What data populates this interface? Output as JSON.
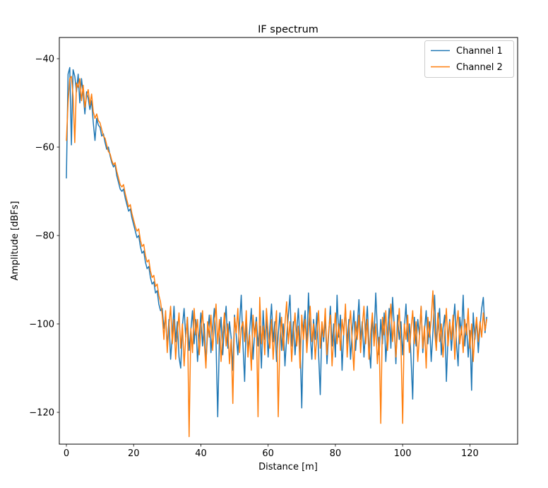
{
  "figure": {
    "background": "#ffffff"
  },
  "chart_data": {
    "type": "line",
    "title": "IF spectrum",
    "xlabel": "Distance [m]",
    "ylabel": "Amplitude [dBFs]",
    "xlim": [
      -2.1,
      134.2
    ],
    "ylim": [
      -127.2,
      -35.2
    ],
    "xticks": [
      0,
      20,
      40,
      60,
      80,
      100,
      120
    ],
    "xtick_labels": [
      "0",
      "20",
      "40",
      "60",
      "80",
      "100",
      "120"
    ],
    "yticks": [
      -120,
      -100,
      -80,
      -60,
      -40
    ],
    "ytick_labels": [
      "−120",
      "−100",
      "−80",
      "−60",
      "−40"
    ],
    "grid": false,
    "legend": {
      "position": "upper right",
      "entries": [
        "Channel 1",
        "Channel 2"
      ]
    },
    "x_start": 0,
    "x_step": 0.5,
    "series": [
      {
        "name": "Channel 1",
        "color": "#1f77b4",
        "values": [
          -67,
          -43.5,
          -42,
          -59.5,
          -42.5,
          -44,
          -47.5,
          -43.5,
          -50,
          -44.5,
          -48,
          -52.5,
          -47.5,
          -49,
          -51.5,
          -49.5,
          -54.5,
          -58.5,
          -53.5,
          -55,
          -55.5,
          -57.5,
          -57,
          -59,
          -60.5,
          -60,
          -62,
          -63.5,
          -64.5,
          -64,
          -66.5,
          -68,
          -69.5,
          -70,
          -69.5,
          -71.5,
          -73,
          -74.5,
          -74,
          -76,
          -77.5,
          -79,
          -80.5,
          -80,
          -82.5,
          -84,
          -83.5,
          -86,
          -87.5,
          -87,
          -89.5,
          -91,
          -90.5,
          -93,
          -92.5,
          -95.5,
          -97,
          -96.5,
          -101,
          -98,
          -105.5,
          -99,
          -108,
          -102.5,
          -96,
          -104,
          -99.5,
          -107.5,
          -110,
          -100.5,
          -96.5,
          -103,
          -98.5,
          -106,
          -101.5,
          -97,
          -104.5,
          -99,
          -108.5,
          -103,
          -97.5,
          -105,
          -100,
          -109,
          -102,
          -98,
          -106.5,
          -101,
          -96.5,
          -104,
          -121,
          -103.5,
          -98.5,
          -107,
          -100.5,
          -96,
          -105.5,
          -99.5,
          -103,
          -110.5,
          -98,
          -102.5,
          -107,
          -100,
          -93.5,
          -104.5,
          -113,
          -99,
          -106,
          -101.5,
          -96.5,
          -108,
          -102,
          -98.5,
          -105,
          -100.5,
          -110,
          -97,
          -103.5,
          -99,
          -107.5,
          -101,
          -95.5,
          -104,
          -99.5,
          -108.5,
          -102.5,
          -97.5,
          -106,
          -100,
          -109.5,
          -103,
          -98,
          -93.5,
          -105,
          -99.5,
          -107,
          -101.5,
          -96.5,
          -104.5,
          -119,
          -100.5,
          -97,
          -105.5,
          -93,
          -102,
          -108,
          -99,
          -103.5,
          -97.5,
          -106.5,
          -116,
          -100,
          -104,
          -98.5,
          -109,
          -102.5,
          -96,
          -105,
          -100,
          -107.5,
          -93.5,
          -103,
          -98,
          -110.5,
          -101.5,
          -96.5,
          -104.5,
          -99,
          -108,
          -102,
          -97,
          -106,
          -100.5,
          -94.5,
          -103.5,
          -99.5,
          -107.5,
          -101,
          -96,
          -105,
          -110,
          -98.5,
          -103,
          -93,
          -101.5,
          -107,
          -99,
          -104.5,
          -97.5,
          -108.5,
          -102,
          -96.5,
          -105.5,
          -94,
          -100.5,
          -109,
          -98,
          -103.5,
          -99.5,
          -107,
          -101,
          -95.5,
          -104,
          -100,
          -108,
          -117,
          -98.5,
          -105,
          -99,
          -102.5,
          -96,
          -106.5,
          -101.5,
          -97,
          -104.5,
          -99.5,
          -108.5,
          -102,
          -93.5,
          -105.5,
          -100,
          -96.5,
          -107,
          -101,
          -98,
          -113,
          -103,
          -99,
          -106,
          -100.5,
          -95.5,
          -104,
          -109.5,
          -98.5,
          -102.5,
          -93.5,
          -105,
          -100,
          -107.5,
          -101.5,
          -115,
          -97.5,
          -103.5,
          -99,
          -106.5,
          -100.5,
          -96.5,
          -94,
          -102,
          -98.5
        ]
      },
      {
        "name": "Channel 2",
        "color": "#ff7f0e",
        "values": [
          -58.5,
          -50,
          -44.5,
          -44,
          -48.5,
          -59,
          -45.5,
          -46.5,
          -44.5,
          -49.5,
          -46,
          -51,
          -48.5,
          -47,
          -50.5,
          -48,
          -52,
          -53.5,
          -52.5,
          -54,
          -54.5,
          -56,
          -57.5,
          -58,
          -59.5,
          -61,
          -61.5,
          -63,
          -64,
          -63.5,
          -65.5,
          -67,
          -68.5,
          -69,
          -68.5,
          -70.5,
          -72,
          -73.5,
          -73,
          -75,
          -76.5,
          -78,
          -79,
          -78.5,
          -81,
          -82.5,
          -82,
          -84.5,
          -86,
          -85.5,
          -88,
          -89.5,
          -89,
          -91.5,
          -91,
          -93.5,
          -95,
          -98,
          -103.5,
          -97,
          -106.5,
          -100.5,
          -96,
          -104.5,
          -99,
          -108,
          -102,
          -97.5,
          -105.5,
          -100,
          -109.5,
          -103,
          -98.5,
          -125.5,
          -101,
          -106.5,
          -96.5,
          -102.5,
          -99,
          -107,
          -101.5,
          -97,
          -104,
          -110,
          -99.5,
          -103,
          -98,
          -106,
          -100.5,
          -95.5,
          -104.5,
          -99,
          -108.5,
          -102.5,
          -97.5,
          -105,
          -100,
          -109,
          -103.5,
          -118,
          -98.5,
          -102,
          -96.5,
          -106.5,
          -101,
          -99.5,
          -104,
          -97,
          -107.5,
          -102.5,
          -110.5,
          -98,
          -103,
          -99.5,
          -121,
          -94,
          -104.5,
          -100.5,
          -107,
          -96.5,
          -102,
          -105.5,
          -99,
          -108,
          -101.5,
          -97,
          -121,
          -103.5,
          -98.5,
          -106,
          -100,
          -95,
          -104.5,
          -99.5,
          -108.5,
          -102,
          -97.5,
          -105,
          -100.5,
          -110,
          -98,
          -103.5,
          -99,
          -106.5,
          -101,
          -96,
          -104,
          -100,
          -108,
          -102.5,
          -97,
          -105.5,
          -99.5,
          -103,
          -96.5,
          -107,
          -101.5,
          -98,
          -109.5,
          -103,
          -97.5,
          -104.5,
          -100,
          -106,
          -99,
          -102.5,
          -95.5,
          -107.5,
          -101,
          -97,
          -104,
          -110.5,
          -99.5,
          -103.5,
          -98,
          -106.5,
          -100.5,
          -96,
          -104.5,
          -99,
          -108,
          -102,
          -97.5,
          -105,
          -100,
          -109,
          -103,
          -122.5,
          -98.5,
          -102.5,
          -97,
          -106,
          -100.5,
          -95.5,
          -104,
          -99.5,
          -107.5,
          -101.5,
          -96.5,
          -105,
          -122.5,
          -100,
          -103.5,
          -98,
          -106.5,
          -101,
          -97,
          -104.5,
          -99.5,
          -108.5,
          -102.5,
          -96,
          -105.5,
          -100.5,
          -110,
          -98.5,
          -103,
          -99,
          -92.5,
          -101.5,
          -106,
          -97.5,
          -104,
          -100,
          -107.5,
          -102,
          -96.5,
          -105,
          -99.5,
          -103.5,
          -98,
          -108,
          -101,
          -97,
          -104.5,
          -100.5,
          -106.5,
          -99,
          -102.5,
          -96.5,
          -105.5,
          -100,
          -108.5,
          -102,
          -98.5,
          -104,
          -99.5,
          -103,
          -97.5,
          -101.5,
          -99
        ]
      }
    ]
  }
}
